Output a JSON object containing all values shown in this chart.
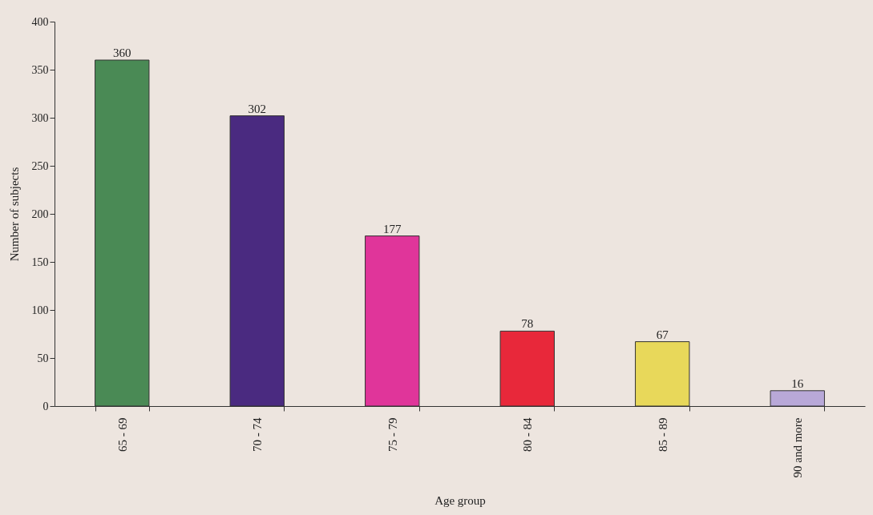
{
  "chart_data": {
    "type": "bar",
    "xlabel": "Age group",
    "ylabel": "Number of subjects",
    "categories": [
      "65 - 69",
      "70 - 74",
      "75 - 79",
      "80 - 84",
      "85 - 89",
      "90 and more"
    ],
    "values": [
      360,
      302,
      177,
      78,
      67,
      16
    ],
    "colors": [
      "#4a8a55",
      "#4a2a80",
      "#e0359a",
      "#e8283a",
      "#e8d85a",
      "#b8a8d8"
    ],
    "ylim": [
      0,
      400
    ],
    "yticks": [
      0,
      50,
      100,
      150,
      200,
      250,
      300,
      350,
      400
    ],
    "grid": false,
    "data_labels": true
  }
}
